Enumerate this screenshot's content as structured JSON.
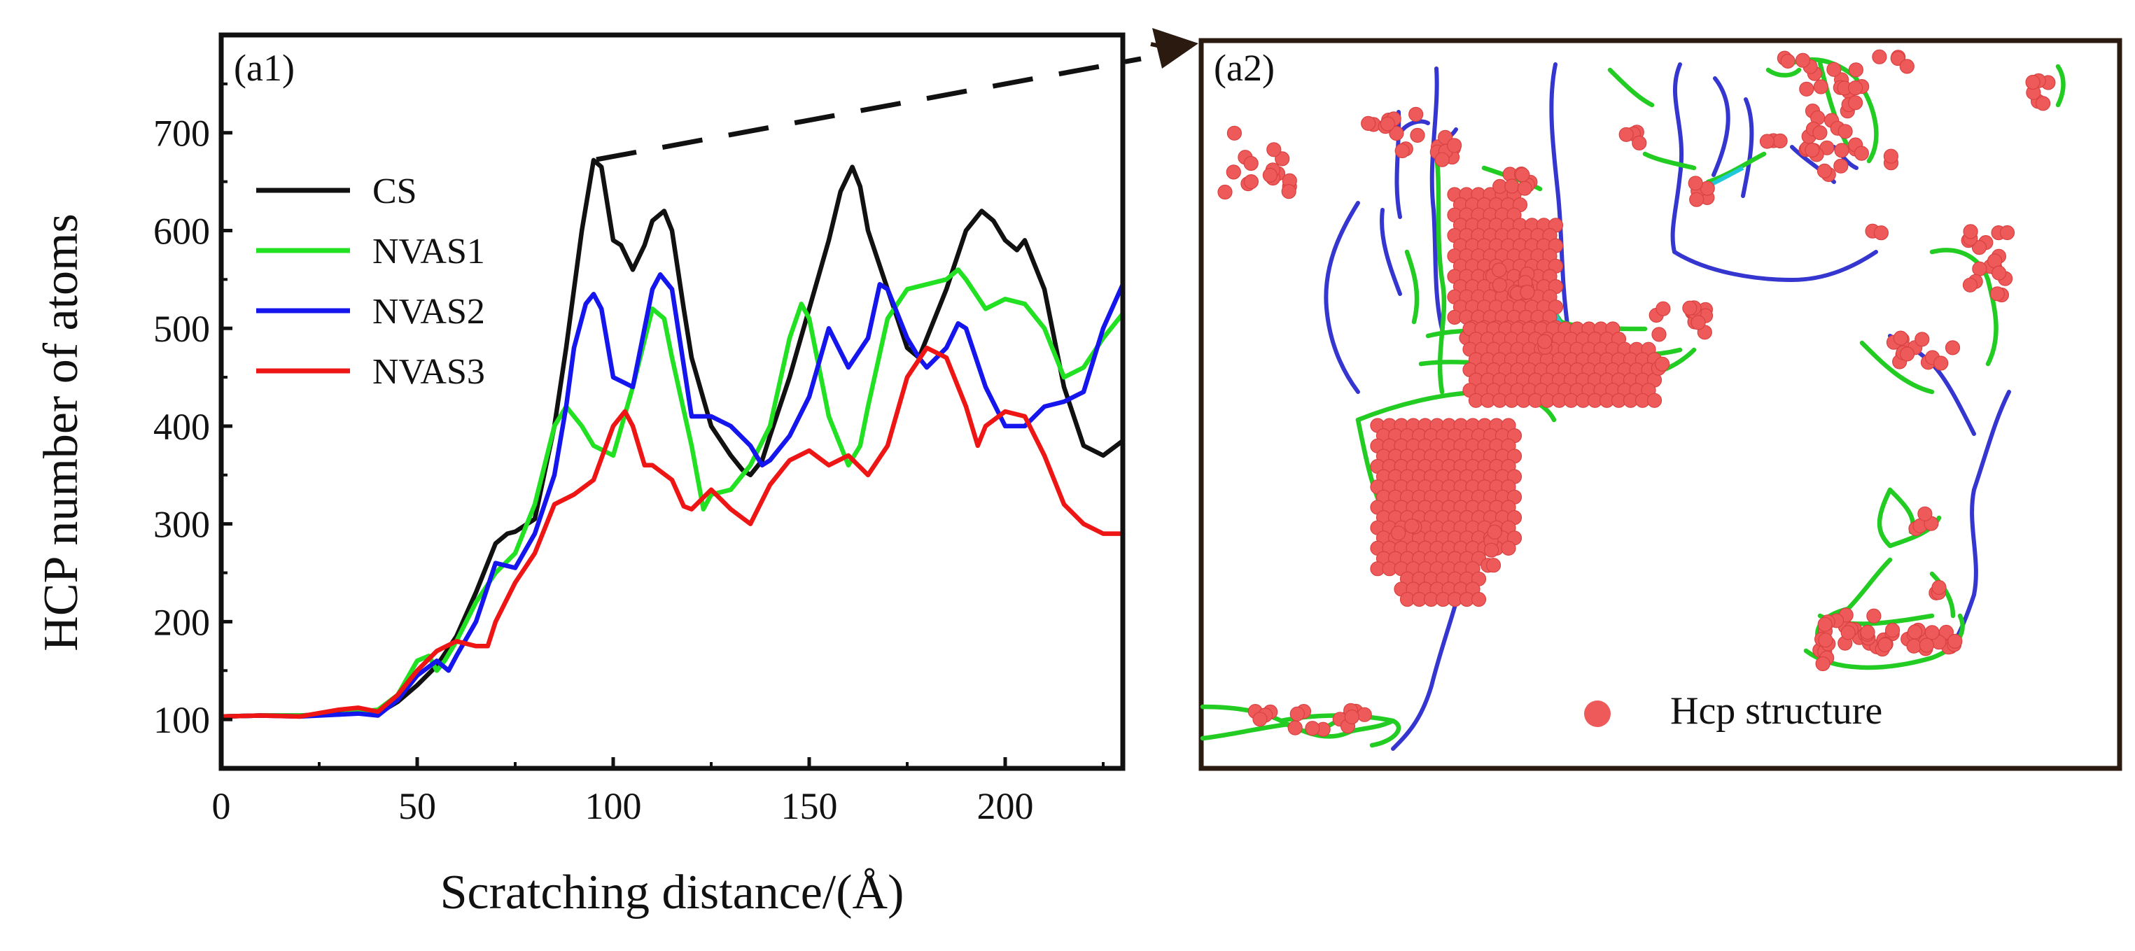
{
  "chart_data": {
    "type": "line",
    "panel_label": "(a1)",
    "xlabel": "Scratching distance/(Å)",
    "ylabel": "HCP number of atoms",
    "xlim": [
      0,
      230
    ],
    "ylim": [
      50,
      800
    ],
    "xticks": [
      0,
      50,
      100,
      150,
      200
    ],
    "yticks": [
      100,
      200,
      300,
      400,
      500,
      600,
      700
    ],
    "legend_position": "upper-left",
    "series": [
      {
        "name": "CS",
        "color": "#111111",
        "x": [
          0,
          10,
          20,
          30,
          35,
          40,
          45,
          50,
          55,
          60,
          65,
          70,
          73,
          75,
          80,
          85,
          88,
          92,
          95,
          97,
          100,
          102,
          105,
          108,
          110,
          113,
          115,
          118,
          120,
          125,
          130,
          133,
          135,
          138,
          140,
          145,
          150,
          155,
          158,
          161,
          163,
          165,
          170,
          175,
          178,
          180,
          185,
          190,
          194,
          197,
          200,
          203,
          205,
          210,
          215,
          220,
          225,
          230
        ],
        "values": [
          103,
          104,
          104,
          106,
          108,
          106,
          118,
          135,
          155,
          185,
          230,
          280,
          290,
          292,
          305,
          400,
          480,
          600,
          672,
          665,
          590,
          585,
          560,
          585,
          610,
          620,
          600,
          520,
          470,
          400,
          370,
          355,
          350,
          365,
          390,
          450,
          520,
          590,
          640,
          665,
          645,
          600,
          540,
          480,
          470,
          490,
          540,
          600,
          620,
          610,
          590,
          580,
          590,
          540,
          440,
          380,
          370,
          385
        ]
      },
      {
        "name": "NVAS1",
        "color": "#22e022",
        "x": [
          0,
          10,
          20,
          30,
          35,
          40,
          45,
          50,
          53,
          55,
          57,
          60,
          65,
          70,
          75,
          80,
          85,
          88,
          92,
          95,
          100,
          105,
          110,
          113,
          115,
          120,
          123,
          125,
          130,
          135,
          140,
          145,
          148,
          150,
          155,
          160,
          163,
          165,
          170,
          175,
          180,
          185,
          188,
          190,
          195,
          200,
          205,
          210,
          215,
          220,
          225,
          230
        ],
        "values": [
          103,
          104,
          104,
          105,
          108,
          110,
          125,
          160,
          165,
          150,
          160,
          180,
          220,
          250,
          270,
          320,
          400,
          420,
          400,
          380,
          370,
          440,
          520,
          510,
          470,
          380,
          315,
          330,
          335,
          360,
          400,
          490,
          525,
          510,
          410,
          360,
          380,
          420,
          510,
          540,
          545,
          550,
          560,
          550,
          520,
          530,
          525,
          500,
          450,
          460,
          490,
          515
        ]
      },
      {
        "name": "NVAS2",
        "color": "#1515ee",
        "x": [
          0,
          10,
          20,
          30,
          35,
          40,
          45,
          50,
          55,
          58,
          60,
          65,
          70,
          75,
          80,
          85,
          88,
          90,
          93,
          95,
          97,
          100,
          105,
          110,
          112,
          115,
          120,
          125,
          130,
          135,
          138,
          140,
          145,
          150,
          155,
          160,
          165,
          168,
          170,
          175,
          178,
          180,
          185,
          188,
          190,
          195,
          200,
          205,
          210,
          215,
          220,
          225,
          230
        ],
        "values": [
          103,
          104,
          103,
          105,
          106,
          104,
          120,
          145,
          160,
          150,
          165,
          200,
          260,
          255,
          290,
          350,
          420,
          480,
          525,
          535,
          520,
          450,
          440,
          540,
          555,
          540,
          410,
          410,
          400,
          380,
          360,
          365,
          390,
          430,
          500,
          460,
          490,
          545,
          540,
          490,
          470,
          460,
          480,
          505,
          500,
          440,
          400,
          400,
          420,
          425,
          435,
          500,
          545
        ]
      },
      {
        "name": "NVAS3",
        "color": "#ee1515",
        "x": [
          0,
          10,
          20,
          30,
          35,
          40,
          45,
          50,
          55,
          60,
          65,
          68,
          70,
          75,
          80,
          85,
          90,
          95,
          100,
          103,
          105,
          108,
          110,
          115,
          118,
          120,
          125,
          130,
          135,
          140,
          145,
          150,
          155,
          160,
          165,
          170,
          175,
          180,
          185,
          190,
          193,
          195,
          200,
          205,
          210,
          215,
          220,
          225,
          230
        ],
        "values": [
          103,
          104,
          103,
          110,
          112,
          108,
          125,
          150,
          170,
          180,
          175,
          175,
          200,
          240,
          270,
          320,
          330,
          345,
          400,
          415,
          400,
          360,
          360,
          345,
          318,
          315,
          335,
          315,
          300,
          340,
          365,
          375,
          360,
          370,
          350,
          380,
          450,
          480,
          470,
          420,
          380,
          400,
          415,
          410,
          370,
          320,
          300,
          290,
          290
        ]
      }
    ]
  },
  "panel_b": {
    "label": "(a2)",
    "legend_label": "Hcp structure",
    "colors": {
      "hcp_atom": "#ee5a5a",
      "dislocation_blue": "#3535d0",
      "dislocation_green": "#22cc22",
      "dislocation_cyan": "#20c8d8",
      "frame": "#2a1a10"
    }
  },
  "annotations": {
    "connector_color": "#111111",
    "arrow_color": "#2a1a10"
  }
}
